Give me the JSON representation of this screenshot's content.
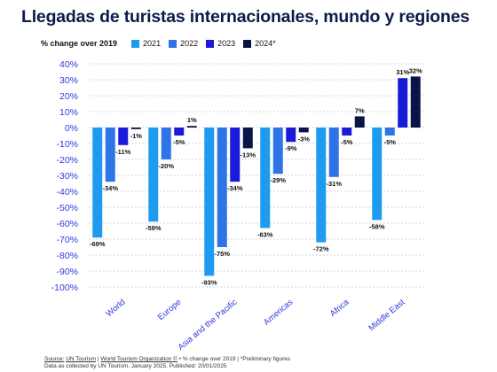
{
  "header": {
    "title": "Llegadas de turistas internacionales, mundo y regiones"
  },
  "legend": {
    "heading": "% change over 2019"
  },
  "footer": {
    "source_label": "Source:",
    "source_link_1": "UN Tourism",
    "source_sep": "|",
    "source_link_2": "World Tourism Organization ©",
    "source_rest": "• % change over 2019 | *Preliminary figures",
    "line2": "Data as collected by UN Tourism, January 2025. Published: 20/01/2025"
  },
  "chart_data": {
    "type": "bar",
    "title": "Llegadas de turistas internacionales, mundo y regiones",
    "ylabel": "% change over 2019",
    "ylim": [
      -100,
      40
    ],
    "yticks": [
      "40%",
      "30%",
      "20%",
      "10%",
      "0%",
      "-10%",
      "-20%",
      "-30%",
      "-40%",
      "-50%",
      "-60%",
      "-70%",
      "-80%",
      "-90%",
      "-100%"
    ],
    "grid": true,
    "legend_position": "top",
    "categories": [
      "World",
      "Europe",
      "Asia and the Pacific",
      "Americas",
      "Africa",
      "Middle East"
    ],
    "series": [
      {
        "name": "2021",
        "color": "#1e9bf0",
        "values": [
          -69,
          -59,
          -93,
          -63,
          -72,
          -58
        ],
        "labels": [
          "-69%",
          "-59%",
          "-93%",
          "-63%",
          "-72%",
          "-58%"
        ]
      },
      {
        "name": "2022",
        "color": "#2f74e6",
        "values": [
          -34,
          -20,
          -75,
          -29,
          -31,
          -5
        ],
        "labels": [
          "-34%",
          "-20%",
          "-75%",
          "-29%",
          "-31%",
          "-5%"
        ]
      },
      {
        "name": "2023",
        "color": "#1a1ad9",
        "values": [
          -11,
          -5,
          -34,
          -9,
          -5,
          31
        ],
        "labels": [
          "-11%",
          "-5%",
          "-34%",
          "-9%",
          "-5%",
          "31%"
        ]
      },
      {
        "name": "2024*",
        "color": "#0a1446",
        "values": [
          -1,
          1,
          -13,
          -3,
          7,
          32
        ],
        "labels": [
          "-1%",
          "1%",
          "-13%",
          "-3%",
          "7%",
          "32%"
        ]
      }
    ]
  }
}
